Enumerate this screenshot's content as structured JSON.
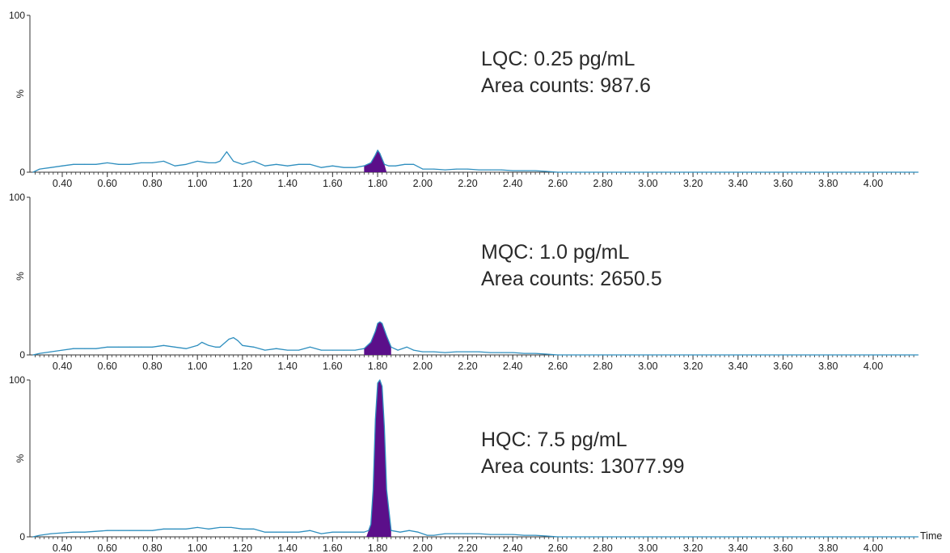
{
  "chart_data": [
    {
      "type": "line",
      "series": [
        {
          "x": [
            0.27,
            0.3,
            0.35,
            0.4,
            0.45,
            0.5,
            0.55,
            0.6,
            0.65,
            0.7,
            0.75,
            0.8,
            0.85,
            0.9,
            0.95,
            1.0,
            1.05,
            1.08,
            1.1,
            1.13,
            1.16,
            1.2,
            1.25,
            1.3,
            1.35,
            1.4,
            1.45,
            1.5,
            1.55,
            1.6,
            1.65,
            1.7,
            1.74,
            1.77,
            1.79,
            1.8,
            1.81,
            1.83,
            1.85,
            1.88,
            1.92,
            1.96,
            2.0,
            2.05,
            2.1,
            2.15,
            2.2,
            2.25,
            2.3,
            2.35,
            2.4,
            2.45,
            2.5,
            2.55,
            2.6,
            2.7,
            2.8,
            3.0,
            3.2,
            3.4,
            3.6,
            3.8,
            4.0,
            4.2
          ],
          "y": [
            0,
            2,
            3,
            4,
            5,
            5,
            5,
            6,
            5,
            5,
            6,
            6,
            7,
            4,
            5,
            7,
            6,
            6,
            7,
            13,
            7,
            5,
            7,
            4,
            5,
            4,
            5,
            5,
            3,
            4,
            3,
            3,
            4,
            6,
            11,
            14,
            12,
            5,
            4,
            4,
            5,
            5,
            2,
            2,
            1.5,
            2,
            2,
            1.5,
            1.5,
            1.5,
            1,
            1,
            1,
            0.5,
            0,
            0,
            0,
            0,
            0,
            0,
            0,
            0,
            0,
            0
          ]
        }
      ],
      "xlim": [
        0.27,
        4.2
      ],
      "ylim": [
        0,
        100
      ],
      "xticks": [
        "0.40",
        "0.60",
        "0.80",
        "1.00",
        "1.20",
        "1.40",
        "1.60",
        "1.80",
        "2.00",
        "2.20",
        "2.40",
        "2.60",
        "2.80",
        "3.00",
        "3.20",
        "3.40",
        "3.60",
        "3.80",
        "4.00"
      ],
      "yticks": [
        "0",
        "100"
      ],
      "ylabel": "%",
      "xlabel": "",
      "annotation": [
        "LQC: 0.25 pg/mL",
        "Area counts: 987.6"
      ],
      "peak": {
        "start": 1.74,
        "apex": 1.8,
        "end": 1.84,
        "height": 14
      },
      "grid": false,
      "line_color": "#2f8fbf",
      "fill_color": "#5b0f8a"
    },
    {
      "type": "line",
      "series": [
        {
          "x": [
            0.27,
            0.3,
            0.35,
            0.4,
            0.45,
            0.5,
            0.55,
            0.6,
            0.65,
            0.7,
            0.75,
            0.8,
            0.85,
            0.9,
            0.95,
            1.0,
            1.02,
            1.05,
            1.08,
            1.1,
            1.14,
            1.16,
            1.18,
            1.2,
            1.25,
            1.3,
            1.35,
            1.4,
            1.45,
            1.5,
            1.55,
            1.6,
            1.65,
            1.7,
            1.74,
            1.77,
            1.79,
            1.8,
            1.81,
            1.82,
            1.84,
            1.86,
            1.89,
            1.93,
            1.96,
            2.0,
            2.05,
            2.1,
            2.15,
            2.2,
            2.25,
            2.3,
            2.35,
            2.4,
            2.45,
            2.5,
            2.55,
            2.6,
            2.7,
            2.8,
            3.0,
            3.2,
            3.4,
            3.6,
            3.8,
            4.0,
            4.2
          ],
          "y": [
            0,
            1,
            2,
            3,
            4,
            4,
            4,
            5,
            5,
            5,
            5,
            5,
            6,
            5,
            4,
            6,
            8,
            6,
            5,
            5,
            10,
            11,
            9,
            6,
            5,
            3,
            4,
            3,
            3,
            5,
            3,
            3,
            3,
            3,
            4,
            8,
            15,
            20,
            21,
            20,
            12,
            5,
            3,
            5,
            3,
            2,
            2,
            1.5,
            2,
            2,
            2,
            1.5,
            1.5,
            1.5,
            1,
            1,
            0.5,
            0,
            0,
            0,
            0,
            0,
            0,
            0,
            0,
            0,
            0
          ]
        }
      ],
      "xlim": [
        0.27,
        4.2
      ],
      "ylim": [
        0,
        100
      ],
      "xticks": [
        "0.40",
        "0.60",
        "0.80",
        "1.00",
        "1.20",
        "1.40",
        "1.60",
        "1.80",
        "2.00",
        "2.20",
        "2.40",
        "2.60",
        "2.80",
        "3.00",
        "3.20",
        "3.40",
        "3.60",
        "3.80",
        "4.00"
      ],
      "yticks": [
        "0",
        "100"
      ],
      "ylabel": "%",
      "xlabel": "",
      "annotation": [
        "MQC: 1.0 pg/mL",
        "Area counts: 2650.5"
      ],
      "peak": {
        "start": 1.74,
        "apex": 1.81,
        "end": 1.86,
        "height": 21
      },
      "grid": false,
      "line_color": "#2f8fbf",
      "fill_color": "#5b0f8a"
    },
    {
      "type": "line",
      "series": [
        {
          "x": [
            0.27,
            0.3,
            0.35,
            0.4,
            0.45,
            0.5,
            0.55,
            0.6,
            0.65,
            0.7,
            0.75,
            0.8,
            0.85,
            0.9,
            0.95,
            1.0,
            1.05,
            1.1,
            1.15,
            1.2,
            1.25,
            1.3,
            1.35,
            1.4,
            1.45,
            1.5,
            1.55,
            1.6,
            1.65,
            1.7,
            1.74,
            1.76,
            1.77,
            1.78,
            1.79,
            1.8,
            1.81,
            1.82,
            1.83,
            1.84,
            1.86,
            1.9,
            1.94,
            1.98,
            2.02,
            2.05,
            2.1,
            2.15,
            2.2,
            2.25,
            2.3,
            2.35,
            2.4,
            2.45,
            2.5,
            2.55,
            2.6,
            2.7,
            2.8,
            3.0,
            3.2,
            3.4,
            3.6,
            3.8,
            4.0,
            4.2
          ],
          "y": [
            0,
            1,
            2,
            2.5,
            3,
            3,
            3.5,
            4,
            4,
            4,
            4,
            4,
            5,
            5,
            5,
            6,
            5,
            6,
            6,
            5,
            5,
            3,
            3,
            3,
            3,
            4,
            2,
            3,
            3,
            3,
            3,
            4,
            8,
            30,
            75,
            98,
            100,
            96,
            70,
            30,
            4,
            3,
            4,
            3,
            1,
            1,
            2,
            2,
            2,
            2,
            1.5,
            1.5,
            1.5,
            1,
            1,
            0.5,
            0,
            0,
            0,
            0,
            0,
            0,
            0,
            0,
            0,
            0
          ]
        }
      ],
      "xlim": [
        0.27,
        4.2
      ],
      "ylim": [
        0,
        100
      ],
      "xticks": [
        "0.40",
        "0.60",
        "0.80",
        "1.00",
        "1.20",
        "1.40",
        "1.60",
        "1.80",
        "2.00",
        "2.20",
        "2.40",
        "2.60",
        "2.80",
        "3.00",
        "3.20",
        "3.40",
        "3.60",
        "3.80",
        "4.00"
      ],
      "yticks": [
        "0",
        "100"
      ],
      "ylabel": "%",
      "xlabel": "Time",
      "annotation": [
        "HQC: 7.5 pg/mL",
        "Area counts: 13077.99"
      ],
      "peak": {
        "start": 1.75,
        "apex": 1.81,
        "end": 1.86,
        "height": 100
      },
      "grid": false,
      "line_color": "#2f8fbf",
      "fill_color": "#5b0f8a"
    }
  ]
}
